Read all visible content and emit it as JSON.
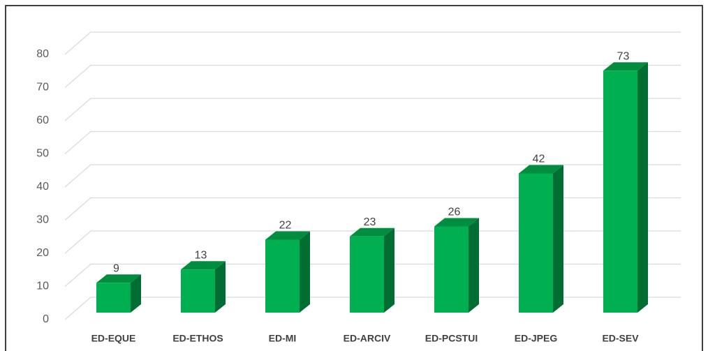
{
  "chart_data": {
    "type": "bar3d",
    "categories": [
      "ED-EQUE",
      "ED-ETHOS",
      "ED-MI",
      "ED-ARCIV",
      "ED-PCSTUI",
      "ED-JPEG",
      "ED-SEV"
    ],
    "values": [
      9,
      13,
      22,
      23,
      26,
      42,
      73
    ],
    "color": "#00b050",
    "ylim": [
      0,
      80
    ],
    "yticks": [
      0,
      10,
      20,
      30,
      40,
      50,
      60,
      70,
      80
    ],
    "grid": true
  }
}
